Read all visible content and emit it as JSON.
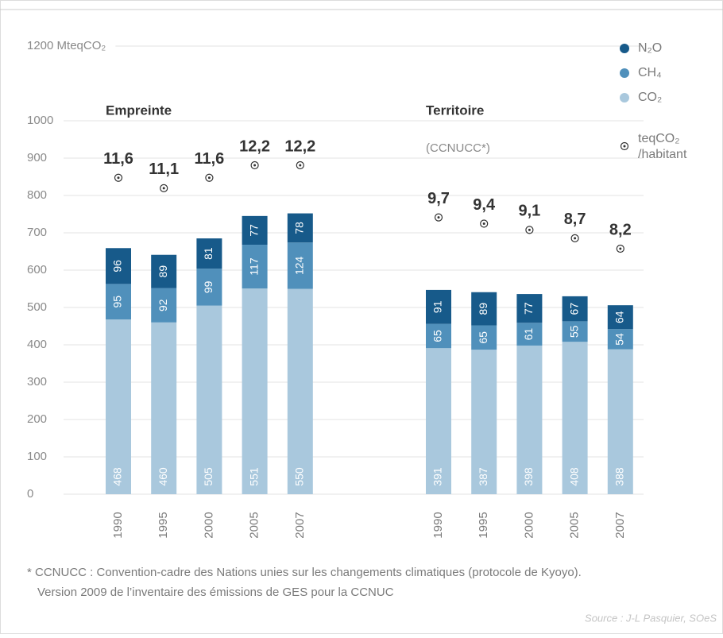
{
  "chart_data": {
    "type": "stacked_bar",
    "categories": [
      "1990",
      "1995",
      "2000",
      "2005",
      "2007",
      "1990",
      "1995",
      "2000",
      "2005",
      "2007"
    ],
    "groups": [
      {
        "label": "Empreinte"
      },
      {
        "label": "Territoire",
        "subtitle": "(CCNUCC*)"
      }
    ],
    "series": [
      {
        "name": "CO₂",
        "color": "#a9c8dd",
        "values": [
          468,
          460,
          505,
          551,
          550,
          391,
          387,
          398,
          408,
          388
        ]
      },
      {
        "name": "CH₄",
        "color": "#5090bb",
        "values": [
          95,
          92,
          99,
          117,
          124,
          65,
          65,
          61,
          55,
          54
        ]
      },
      {
        "name": "N₂O",
        "color": "#175a8a",
        "values": [
          96,
          89,
          81,
          77,
          78,
          91,
          89,
          77,
          67,
          64
        ]
      }
    ],
    "per_capita": {
      "name": [
        "teqCO₂",
        "/habitant"
      ],
      "values": [
        11.6,
        11.1,
        11.6,
        12.2,
        12.2,
        9.7,
        9.4,
        9.1,
        8.7,
        8.2
      ],
      "value_labels": [
        "11,6",
        "11,1",
        "11,6",
        "12,2",
        "12,2",
        "9,7",
        "9,4",
        "9,1",
        "8,7",
        "8,2"
      ]
    },
    "ylim": [
      0,
      1200
    ],
    "yticks": [
      0,
      100,
      200,
      300,
      400,
      500,
      600,
      700,
      800,
      900,
      1000,
      {
        "value": 1200,
        "label": "1200 MteqCO₂"
      }
    ],
    "grid": true,
    "legend": "top-right",
    "footnote": [
      "* CCNUCC : Convention-cadre des Nations unies sur les changements climatiques (protocole de Kyoyo).",
      "Version 2009 de l’inventaire des émissions de GES pour la CCNUC"
    ],
    "source": "Source : J-L Pasquier, SOeS"
  }
}
